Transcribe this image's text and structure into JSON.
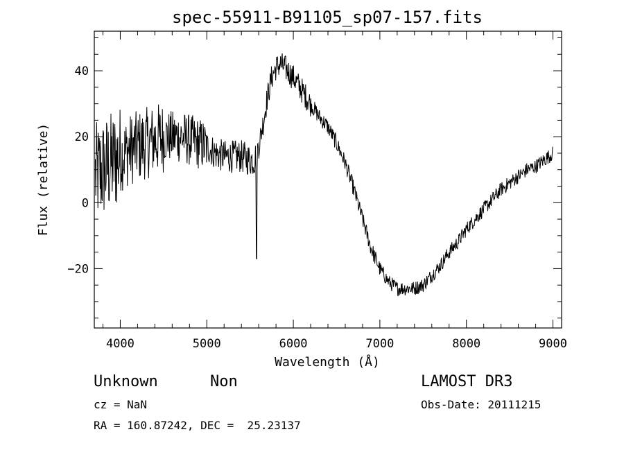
{
  "chart_data": {
    "type": "line",
    "title": "spec-55911-B91105_sp07-157.fits",
    "xlabel": "Wavelength (Å)",
    "ylabel": "Flux (relative)",
    "xlim": [
      3700,
      9100
    ],
    "ylim": [
      -38,
      52
    ],
    "x_ticks": [
      4000,
      5000,
      6000,
      7000,
      8000,
      9000
    ],
    "y_ticks": [
      -20,
      0,
      20,
      40
    ],
    "x_tick_labels": [
      "4000",
      "5000",
      "6000",
      "7000",
      "8000",
      "9000"
    ],
    "y_tick_labels": [
      "−20",
      "0",
      "20",
      "40"
    ],
    "grid": false,
    "series": [
      {
        "x": [
          3700,
          3800,
          3900,
          4000,
          4100,
          4200,
          4300,
          4400,
          4500,
          4600,
          4700,
          4800,
          4900,
          5000,
          5100,
          5200,
          5300,
          5400,
          5500,
          5550,
          5580,
          5600,
          5650,
          5700,
          5750,
          5800,
          5850,
          5900,
          6000,
          6100,
          6200,
          6300,
          6400,
          6500,
          6600,
          6700,
          6800,
          6900,
          7000,
          7100,
          7200,
          7300,
          7400,
          7500,
          7600,
          7700,
          7800,
          7900,
          8000,
          8100,
          8200,
          8300,
          8400,
          8500,
          8600,
          8700,
          8800,
          8900,
          8950,
          9000
        ],
        "y": [
          8,
          10,
          12,
          14,
          16,
          17,
          18,
          19,
          20,
          20,
          20,
          19,
          18,
          17,
          15,
          14,
          14,
          14,
          13,
          13,
          15,
          17,
          24,
          32,
          38,
          41,
          42,
          41,
          38,
          34,
          30,
          26,
          23,
          18,
          12,
          4,
          -5,
          -14,
          -20,
          -24,
          -26,
          -26,
          -26,
          -25,
          -22,
          -19,
          -15,
          -12,
          -8,
          -5,
          -2,
          1,
          4,
          6,
          8,
          10,
          11,
          13,
          14,
          15
        ]
      }
    ]
  },
  "footer": {
    "object_type": "Unknown",
    "object_class": "Non",
    "survey": "LAMOST DR3",
    "cz": "cz = NaN",
    "obs_date": "Obs-Date: 20111215",
    "radec": "RA = 160.87242, DEC =  25.23137"
  }
}
